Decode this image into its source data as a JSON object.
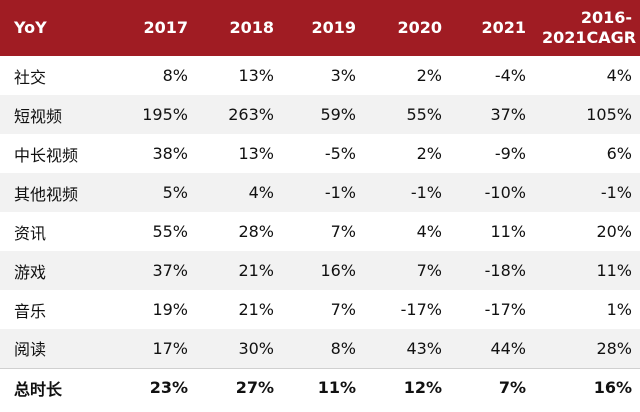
{
  "chart_data": {
    "type": "table",
    "columns": [
      "YoY",
      "2017",
      "2018",
      "2019",
      "2020",
      "2021",
      "2016-2021CAGR"
    ],
    "header_lines": [
      [
        "YoY"
      ],
      [
        "2017"
      ],
      [
        "2018"
      ],
      [
        "2019"
      ],
      [
        "2020"
      ],
      [
        "2021"
      ],
      [
        "2016-",
        "2021CAGR"
      ]
    ],
    "rows": [
      [
        "社交",
        "8%",
        "13%",
        "3%",
        "2%",
        "-4%",
        "4%"
      ],
      [
        "短视频",
        "195%",
        "263%",
        "59%",
        "55%",
        "37%",
        "105%"
      ],
      [
        "中长视频",
        "38%",
        "13%",
        "-5%",
        "2%",
        "-9%",
        "6%"
      ],
      [
        "其他视频",
        "5%",
        "4%",
        "-1%",
        "-1%",
        "-10%",
        "-1%"
      ],
      [
        "资讯",
        "55%",
        "28%",
        "7%",
        "4%",
        "11%",
        "20%"
      ],
      [
        "游戏",
        "37%",
        "21%",
        "16%",
        "7%",
        "-18%",
        "11%"
      ],
      [
        "音乐",
        "19%",
        "21%",
        "7%",
        "-17%",
        "-17%",
        "1%"
      ],
      [
        "阅读",
        "17%",
        "30%",
        "8%",
        "43%",
        "44%",
        "28%"
      ]
    ],
    "total_row": [
      "总时长",
      "23%",
      "27%",
      "11%",
      "12%",
      "7%",
      "16%"
    ],
    "colors": {
      "header_bg": "#a01c23",
      "header_text": "#ffffff",
      "alt_row_bg": "#f2f2f2"
    }
  }
}
